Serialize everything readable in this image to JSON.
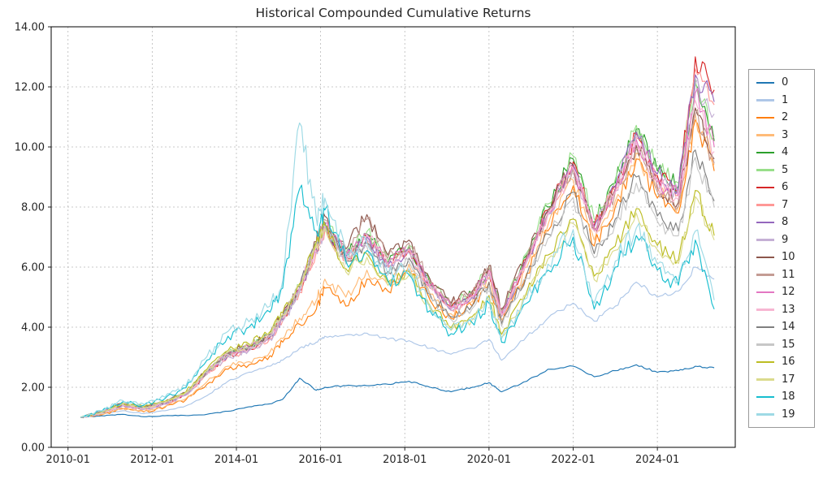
{
  "title": "Historical Compounded Cumulative Returns",
  "chart_data": {
    "type": "line",
    "title": "Historical Compounded Cumulative Returns",
    "xlabel": "",
    "ylabel": "",
    "grid": true,
    "grid_style": "dashed",
    "legend_position": "right",
    "plot_border_color": "#000000",
    "grid_color": "#b8b8b8",
    "xlim": [
      2009.6,
      2025.85
    ],
    "ylim": [
      0,
      14
    ],
    "x_unit": "decimal_year",
    "x_ticks": [
      {
        "label": "2010-01",
        "value": 2010.0
      },
      {
        "label": "2012-01",
        "value": 2012.0
      },
      {
        "label": "2014-01",
        "value": 2014.0
      },
      {
        "label": "2016-01",
        "value": 2016.0
      },
      {
        "label": "2018-01",
        "value": 2018.0
      },
      {
        "label": "2020-01",
        "value": 2020.0
      },
      {
        "label": "2022-01",
        "value": 2022.0
      },
      {
        "label": "2024-01",
        "value": 2024.0
      }
    ],
    "y_ticks": [
      {
        "label": "0.00",
        "value": 0
      },
      {
        "label": "2.00",
        "value": 2
      },
      {
        "label": "4.00",
        "value": 4
      },
      {
        "label": "6.00",
        "value": 6
      },
      {
        "label": "8.00",
        "value": 8
      },
      {
        "label": "10.00",
        "value": 10
      },
      {
        "label": "12.00",
        "value": 12
      },
      {
        "label": "14.00",
        "value": 14
      }
    ],
    "x": [
      2010.3,
      2010.8,
      2011.3,
      2011.8,
      2012.3,
      2012.8,
      2013.3,
      2013.8,
      2014.3,
      2014.8,
      2015.1,
      2015.5,
      2015.9,
      2016.1,
      2016.6,
      2017.1,
      2017.6,
      2018.1,
      2018.6,
      2019.1,
      2019.6,
      2020.0,
      2020.3,
      2020.9,
      2021.4,
      2022.0,
      2022.5,
      2023.0,
      2023.5,
      2024.0,
      2024.5,
      2024.9,
      2025.35
    ],
    "series": [
      {
        "name": "0",
        "color": "#1f77b4",
        "noise": 0.012,
        "values": [
          1.0,
          1.05,
          1.1,
          1.02,
          1.05,
          1.06,
          1.1,
          1.2,
          1.35,
          1.45,
          1.6,
          2.3,
          1.9,
          2.0,
          2.05,
          2.05,
          2.1,
          2.2,
          2.0,
          1.85,
          2.0,
          2.15,
          1.85,
          2.2,
          2.6,
          2.7,
          2.35,
          2.55,
          2.75,
          2.5,
          2.55,
          2.7,
          2.65
        ]
      },
      {
        "name": "1",
        "color": "#aec7e8",
        "noise": 0.015,
        "values": [
          1.0,
          1.1,
          1.22,
          1.12,
          1.22,
          1.38,
          1.72,
          2.2,
          2.5,
          2.7,
          2.9,
          3.3,
          3.5,
          3.7,
          3.75,
          3.8,
          3.6,
          3.55,
          3.3,
          3.1,
          3.3,
          3.6,
          2.9,
          3.7,
          4.3,
          4.8,
          4.2,
          4.7,
          5.5,
          5.0,
          5.2,
          6.0,
          5.6
        ]
      },
      {
        "name": "2",
        "color": "#ff7f0e",
        "noise": 0.035,
        "values": [
          1.0,
          1.08,
          1.28,
          1.18,
          1.33,
          1.58,
          2.1,
          2.6,
          2.75,
          3.05,
          3.5,
          4.1,
          4.6,
          5.3,
          4.7,
          5.6,
          5.2,
          5.9,
          4.9,
          4.3,
          4.7,
          5.5,
          4.1,
          5.8,
          7.2,
          8.7,
          6.7,
          8.0,
          9.6,
          8.3,
          7.8,
          10.9,
          9.2
        ]
      },
      {
        "name": "3",
        "color": "#ffbb78",
        "noise": 0.035,
        "values": [
          1.0,
          1.1,
          1.3,
          1.2,
          1.36,
          1.62,
          2.18,
          2.7,
          2.85,
          3.18,
          3.62,
          4.3,
          4.9,
          5.6,
          5.0,
          5.9,
          5.4,
          6.1,
          5.1,
          4.45,
          4.85,
          5.65,
          4.25,
          6.0,
          7.4,
          8.9,
          6.9,
          8.2,
          9.8,
          8.5,
          8.0,
          11.1,
          9.4
        ]
      },
      {
        "name": "4",
        "color": "#2ca02c",
        "noise": 0.035,
        "values": [
          1.0,
          1.16,
          1.42,
          1.3,
          1.48,
          1.79,
          2.5,
          3.1,
          3.32,
          3.72,
          4.33,
          5.3,
          6.7,
          7.4,
          6.4,
          7.1,
          6.15,
          6.65,
          5.45,
          4.7,
          5.1,
          5.95,
          4.5,
          6.4,
          8.0,
          9.6,
          7.5,
          8.8,
          10.6,
          9.2,
          8.7,
          12.1,
          10.2
        ]
      },
      {
        "name": "5",
        "color": "#98df8a",
        "noise": 0.035,
        "values": [
          1.0,
          1.17,
          1.44,
          1.32,
          1.5,
          1.81,
          2.54,
          3.14,
          3.36,
          3.77,
          4.38,
          5.36,
          6.78,
          7.48,
          6.48,
          7.18,
          6.22,
          6.72,
          5.52,
          4.76,
          5.16,
          6.02,
          4.56,
          6.48,
          8.1,
          9.7,
          7.6,
          8.92,
          10.72,
          9.3,
          8.8,
          12.25,
          10.35
        ]
      },
      {
        "name": "6",
        "color": "#d62728",
        "noise": 0.035,
        "values": [
          1.0,
          1.15,
          1.41,
          1.29,
          1.46,
          1.77,
          2.47,
          3.07,
          3.28,
          3.68,
          4.28,
          5.24,
          6.62,
          7.32,
          6.33,
          7.02,
          6.08,
          6.58,
          5.38,
          4.64,
          5.04,
          5.88,
          4.44,
          6.3,
          7.9,
          9.5,
          7.4,
          8.7,
          10.45,
          9.05,
          8.55,
          13.0,
          11.9
        ]
      },
      {
        "name": "7",
        "color": "#ff9896",
        "noise": 0.035,
        "values": [
          1.0,
          1.14,
          1.39,
          1.27,
          1.44,
          1.74,
          2.43,
          3.03,
          3.24,
          3.63,
          4.22,
          5.16,
          6.52,
          7.22,
          6.24,
          6.93,
          6.0,
          6.5,
          5.31,
          4.57,
          4.97,
          5.8,
          4.37,
          6.22,
          7.8,
          9.38,
          7.3,
          8.6,
          10.3,
          8.92,
          8.42,
          12.6,
          11.4
        ]
      },
      {
        "name": "8",
        "color": "#9467bd",
        "noise": 0.035,
        "values": [
          1.0,
          1.15,
          1.4,
          1.28,
          1.45,
          1.76,
          2.46,
          3.06,
          3.26,
          3.66,
          4.26,
          5.21,
          6.61,
          7.31,
          6.31,
          7.01,
          6.06,
          6.56,
          5.36,
          4.61,
          5.01,
          5.86,
          4.41,
          6.25,
          7.85,
          9.42,
          7.35,
          8.65,
          10.5,
          9.1,
          8.6,
          12.4,
          11.5
        ]
      },
      {
        "name": "9",
        "color": "#c5b0d5",
        "noise": 0.035,
        "values": [
          1.0,
          1.14,
          1.38,
          1.26,
          1.43,
          1.73,
          2.42,
          3.02,
          3.22,
          3.61,
          4.2,
          5.14,
          6.5,
          7.2,
          6.22,
          6.91,
          5.98,
          6.48,
          5.29,
          4.55,
          4.95,
          5.78,
          4.35,
          6.18,
          7.75,
          9.3,
          7.25,
          8.55,
          10.35,
          8.95,
          8.45,
          12.1,
          11.1
        ]
      },
      {
        "name": "10",
        "color": "#8c564b",
        "noise": 0.035,
        "values": [
          1.0,
          1.18,
          1.46,
          1.34,
          1.52,
          1.83,
          2.56,
          3.16,
          3.38,
          3.78,
          4.4,
          5.38,
          6.85,
          7.7,
          6.6,
          7.75,
          6.4,
          6.9,
          5.6,
          4.8,
          5.2,
          6.05,
          4.6,
          6.4,
          7.9,
          9.4,
          7.3,
          8.6,
          10.05,
          8.65,
          8.15,
          11.3,
          9.6
        ]
      },
      {
        "name": "11",
        "color": "#c49c94",
        "noise": 0.035,
        "values": [
          1.0,
          1.17,
          1.44,
          1.32,
          1.5,
          1.81,
          2.52,
          3.12,
          3.34,
          3.74,
          4.35,
          5.32,
          6.76,
          7.58,
          6.5,
          7.6,
          6.3,
          6.8,
          5.52,
          4.73,
          5.13,
          5.97,
          4.53,
          6.31,
          7.8,
          9.28,
          7.2,
          8.5,
          9.9,
          8.52,
          8.02,
          11.1,
          9.45
        ]
      },
      {
        "name": "12",
        "color": "#e377c2",
        "noise": 0.035,
        "values": [
          1.0,
          1.16,
          1.43,
          1.31,
          1.49,
          1.8,
          2.51,
          3.11,
          3.33,
          3.73,
          4.34,
          5.31,
          6.74,
          7.44,
          6.4,
          7.1,
          6.12,
          6.62,
          5.42,
          4.66,
          5.06,
          5.91,
          4.46,
          6.28,
          7.82,
          9.35,
          7.28,
          8.56,
          10.25,
          8.85,
          8.35,
          11.8,
          10.0
        ]
      },
      {
        "name": "13",
        "color": "#f7b6d2",
        "noise": 0.035,
        "values": [
          1.0,
          1.15,
          1.41,
          1.29,
          1.47,
          1.78,
          2.48,
          3.08,
          3.3,
          3.7,
          4.3,
          5.26,
          6.68,
          7.38,
          6.34,
          7.04,
          6.08,
          6.58,
          5.38,
          4.62,
          5.02,
          5.87,
          4.42,
          6.23,
          7.77,
          9.28,
          7.22,
          8.5,
          10.15,
          8.75,
          8.25,
          11.55,
          9.85
        ]
      },
      {
        "name": "14",
        "color": "#7f7f7f",
        "noise": 0.035,
        "values": [
          1.0,
          1.17,
          1.45,
          1.33,
          1.51,
          1.82,
          2.54,
          3.14,
          3.36,
          3.76,
          4.37,
          5.34,
          6.8,
          7.5,
          6.2,
          6.8,
          5.85,
          6.3,
          5.1,
          4.35,
          4.72,
          5.5,
          4.12,
          5.75,
          7.1,
          8.5,
          6.45,
          7.6,
          9.0,
          7.7,
          7.2,
          9.9,
          8.2
        ]
      },
      {
        "name": "15",
        "color": "#c7c7c7",
        "noise": 0.035,
        "values": [
          1.0,
          1.16,
          1.43,
          1.31,
          1.49,
          1.8,
          2.5,
          3.1,
          3.32,
          3.72,
          4.32,
          5.28,
          6.72,
          7.4,
          6.1,
          6.68,
          5.74,
          6.18,
          5.0,
          4.26,
          4.62,
          5.39,
          4.03,
          5.63,
          6.95,
          8.32,
          6.31,
          7.44,
          8.8,
          7.53,
          7.04,
          9.65,
          8.0
        ]
      },
      {
        "name": "16",
        "color": "#bcbd22",
        "noise": 0.035,
        "values": [
          1.0,
          1.18,
          1.47,
          1.35,
          1.53,
          1.85,
          2.6,
          3.22,
          3.44,
          3.85,
          4.48,
          5.45,
          6.85,
          7.4,
          5.95,
          6.45,
          5.5,
          5.85,
          4.72,
          3.98,
          4.35,
          5.05,
          3.76,
          5.18,
          6.4,
          7.6,
          5.7,
          6.7,
          7.95,
          6.72,
          6.25,
          8.55,
          7.05
        ]
      },
      {
        "name": "17",
        "color": "#dbdb8d",
        "noise": 0.035,
        "values": [
          1.0,
          1.17,
          1.45,
          1.33,
          1.51,
          1.83,
          2.56,
          3.17,
          3.39,
          3.8,
          4.42,
          5.38,
          6.76,
          7.28,
          5.84,
          6.33,
          5.39,
          5.73,
          4.62,
          3.89,
          4.25,
          4.94,
          3.67,
          5.07,
          6.27,
          7.45,
          5.58,
          6.56,
          7.8,
          6.58,
          6.12,
          8.35,
          6.9
        ]
      },
      {
        "name": "18",
        "color": "#17becf",
        "noise": 0.05,
        "values": [
          1.0,
          1.2,
          1.52,
          1.4,
          1.62,
          1.98,
          2.9,
          3.7,
          4.0,
          4.5,
          5.3,
          8.6,
          7.2,
          7.9,
          6.2,
          6.55,
          5.55,
          5.75,
          4.55,
          3.78,
          4.15,
          4.8,
          3.5,
          4.8,
          5.9,
          7.0,
          4.6,
          6.0,
          7.05,
          5.9,
          5.4,
          6.9,
          4.6
        ]
      },
      {
        "name": "19",
        "color": "#9edae5",
        "noise": 0.05,
        "values": [
          1.0,
          1.22,
          1.56,
          1.44,
          1.67,
          2.04,
          3.02,
          3.86,
          4.18,
          4.7,
          5.55,
          10.8,
          7.6,
          8.3,
          6.45,
          6.8,
          5.75,
          5.95,
          4.72,
          3.92,
          4.3,
          4.97,
          3.62,
          4.97,
          6.1,
          7.25,
          4.8,
          6.2,
          7.3,
          6.1,
          5.6,
          7.2,
          4.9
        ]
      }
    ]
  }
}
